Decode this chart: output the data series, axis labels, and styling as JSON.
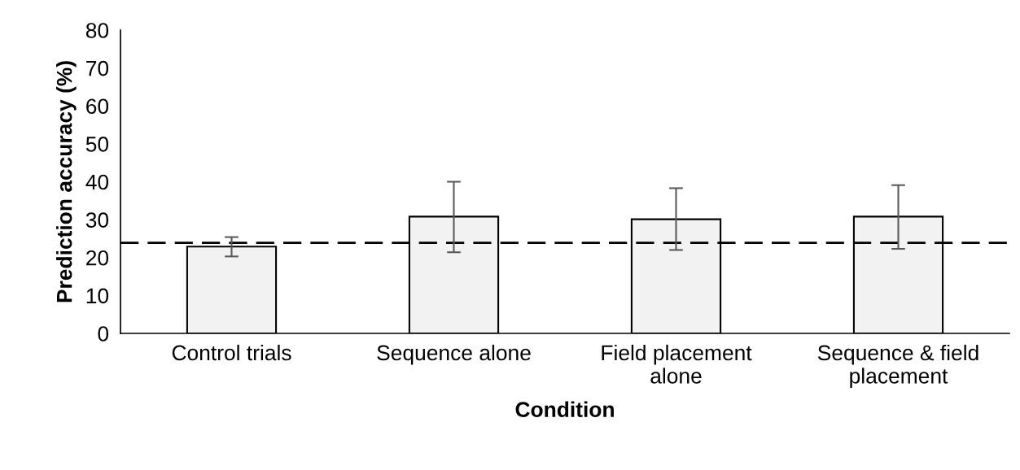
{
  "chart_data": {
    "type": "bar",
    "xlabel": "Condition",
    "ylabel": "Prediction accuracy (%)",
    "categories": [
      "Control trials",
      "Sequence alone",
      "Field placement\nalone",
      "Sequence & field\nplacement"
    ],
    "values": [
      22.9,
      30.8,
      30.1,
      30.8
    ],
    "errors": [
      [
        20.3,
        25.4
      ],
      [
        21.4,
        40.0
      ],
      [
        22.0,
        38.3
      ],
      [
        22.3,
        39.1
      ]
    ],
    "color": "#f2f2f2",
    "ylim": [
      0,
      80
    ],
    "yticks": [
      0,
      10,
      20,
      30,
      40,
      50,
      60,
      70,
      80
    ],
    "grid": false,
    "legend": false,
    "ref_lines": [
      {
        "axis": "y",
        "value": 23.9,
        "label": null,
        "color": "#000000",
        "line_style": "dashed"
      }
    ]
  }
}
